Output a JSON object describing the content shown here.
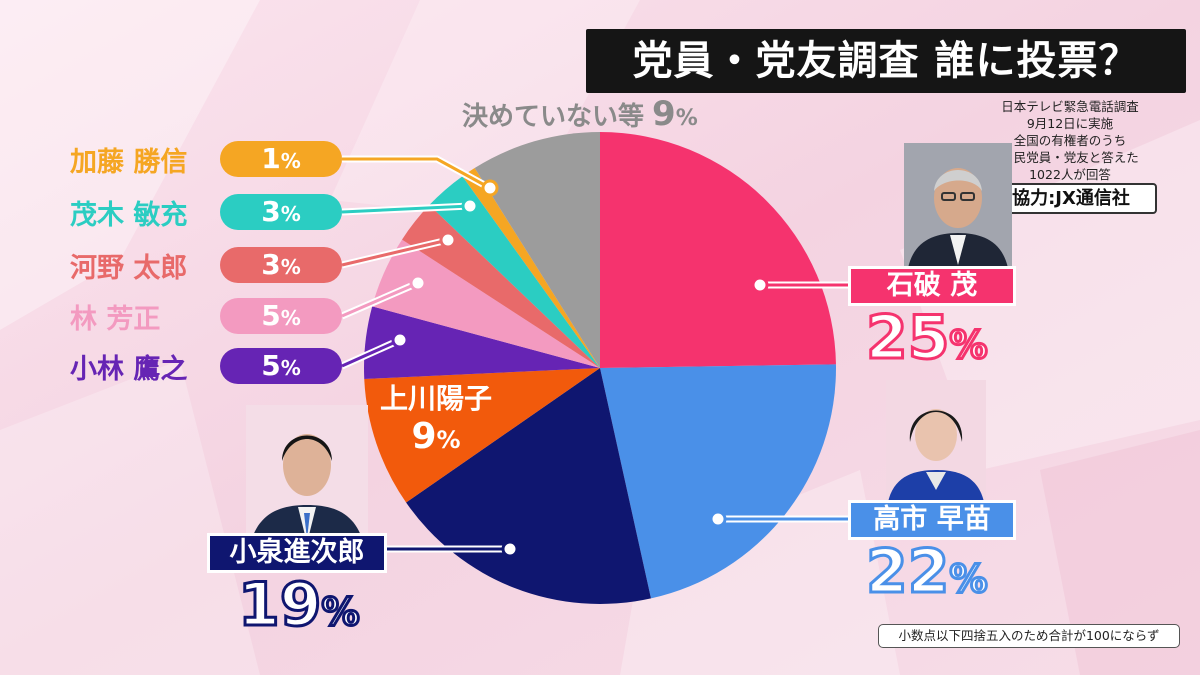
{
  "title": "党員・党友調査 誰に投票？",
  "survey_note": [
    "日本テレビ緊急電話調査",
    "9月12日に実施",
    "全国の有権者のうち",
    "自民党員・党友と答えた",
    "1022人が回答"
  ],
  "cooperation": "協力:JX通信社",
  "footnote": "小数点以下四捨五入のため合計が100にならず",
  "percent_sign": "%",
  "chart_data": {
    "type": "pie",
    "unit": "%",
    "start_angle_deg": 0,
    "direction": "clockwise",
    "slices": [
      {
        "label": "石破 茂",
        "value": 25,
        "color": "#f5336e"
      },
      {
        "label": "高市 早苗",
        "value": 22,
        "color": "#4a90e8"
      },
      {
        "label": "小泉進次郎",
        "value": 19,
        "color": "#0f1670"
      },
      {
        "label": "上川陽子",
        "value": 9,
        "color": "#f25a0c"
      },
      {
        "label": "小林 鷹之",
        "value": 5,
        "color": "#6624b4"
      },
      {
        "label": "林 芳正",
        "value": 5,
        "color": "#f39ac0"
      },
      {
        "label": "河野 太郎",
        "value": 3,
        "color": "#e86a6a"
      },
      {
        "label": "茂木 敏充",
        "value": 3,
        "color": "#2bcdc2"
      },
      {
        "label": "加藤 勝信",
        "value": 1,
        "color": "#f5a623"
      },
      {
        "label": "決めていない等",
        "value": 9,
        "color": "#9c9c9c"
      }
    ]
  },
  "labels": {
    "undecided": {
      "name": "決めていない等",
      "value": "9"
    },
    "minor": [
      {
        "name": "加藤 勝信",
        "value": "1",
        "color": "#f5a623"
      },
      {
        "name": "茂木 敏充",
        "value": "3",
        "color": "#2bcdc2"
      },
      {
        "name": "河野 太郎",
        "value": "3",
        "color": "#e86a6a"
      },
      {
        "name": "林 芳正",
        "value": "5",
        "color": "#f39ac0"
      },
      {
        "name": "小林 鷹之",
        "value": "5",
        "color": "#6624b4"
      }
    ],
    "ishiba": {
      "name": "石破 茂",
      "value": "25",
      "color": "#f5336e"
    },
    "takaichi": {
      "name": "高市 早苗",
      "value": "22",
      "color": "#4a90e8"
    },
    "koizumi": {
      "name": "小泉進次郎",
      "value": "19",
      "color": "#0f1670"
    },
    "kamikawa": {
      "name": "上川陽子",
      "value": "9",
      "color": "#f25a0c"
    }
  }
}
